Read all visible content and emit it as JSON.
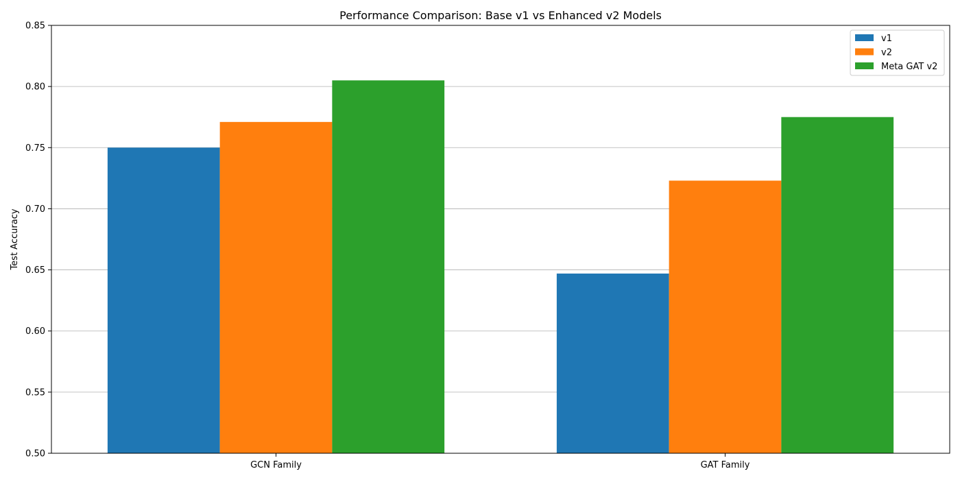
{
  "chart_data": {
    "type": "bar",
    "title": "Performance Comparison: Base v1 vs Enhanced v2 Models",
    "xlabel": "",
    "ylabel": "Test Accuracy",
    "categories": [
      "GCN Family",
      "GAT Family"
    ],
    "series": [
      {
        "name": "v1",
        "color": "#1f77b4",
        "values": [
          0.75,
          0.647
        ]
      },
      {
        "name": "v2",
        "color": "#ff7f0e",
        "values": [
          0.771,
          0.723
        ]
      },
      {
        "name": "Meta GAT v2",
        "color": "#2ca02c",
        "values": [
          0.805,
          0.775
        ]
      }
    ],
    "ylim": [
      0.5,
      0.85
    ],
    "yticks": [
      "0.50",
      "0.55",
      "0.60",
      "0.65",
      "0.70",
      "0.75",
      "0.80",
      "0.85"
    ],
    "grid": "y",
    "legend_position": "top-right"
  }
}
